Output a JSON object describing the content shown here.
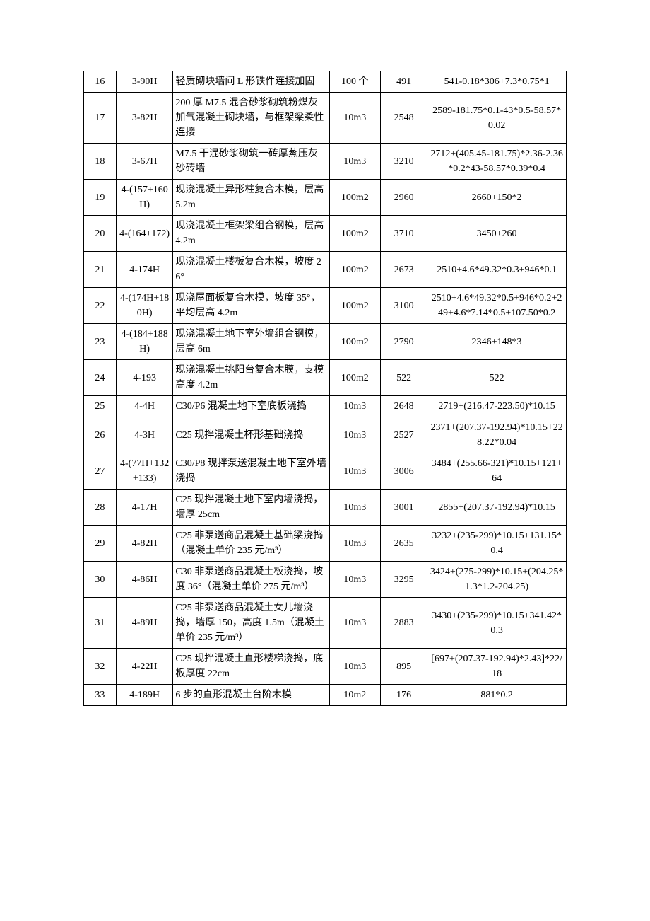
{
  "table": {
    "columns": [
      {
        "key": "idx",
        "class": "col-idx"
      },
      {
        "key": "code",
        "class": "col-code"
      },
      {
        "key": "desc",
        "class": "col-desc"
      },
      {
        "key": "unit",
        "class": "col-unit"
      },
      {
        "key": "val",
        "class": "col-val"
      },
      {
        "key": "calc",
        "class": "col-calc"
      }
    ],
    "rows": [
      {
        "idx": "16",
        "code": "3-90H",
        "desc": "轻质砌块墙间 L 形铁件连接加固",
        "unit": "100 个",
        "val": "491",
        "calc": "541-0.18*306+7.3*0.75*1"
      },
      {
        "idx": "17",
        "code": "3-82H",
        "desc": "200 厚 M7.5 混合砂浆砌筑粉煤灰加气混凝土砌块墙，与框架梁柔性连接",
        "unit": "10m3",
        "val": "2548",
        "calc": "2589-181.75*0.1-43*0.5-58.57*0.02"
      },
      {
        "idx": "18",
        "code": "3-67H",
        "desc": "M7.5 干混砂浆砌筑一砖厚蒸压灰砂砖墙",
        "unit": "10m3",
        "val": "3210",
        "calc": "2712+(405.45-181.75)*2.36-2.36*0.2*43-58.57*0.39*0.4"
      },
      {
        "idx": "19",
        "code": "4-(157+160H)",
        "desc": "现浇混凝土异形柱复合木模，层高 5.2m",
        "unit": "100m2",
        "val": "2960",
        "calc": "2660+150*2"
      },
      {
        "idx": "20",
        "code": "4-(164+172)",
        "desc": "现浇混凝土框架梁组合钢模，层高 4.2m",
        "unit": "100m2",
        "val": "3710",
        "calc": "3450+260"
      },
      {
        "idx": "21",
        "code": "4-174H",
        "desc": "现浇混凝土楼板复合木模，坡度 26°",
        "unit": "100m2",
        "val": "2673",
        "calc": "2510+4.6*49.32*0.3+946*0.1"
      },
      {
        "idx": "22",
        "code": "4-(174H+180H)",
        "desc": "现浇屋面板复合木模，坡度 35°，平均层高 4.2m",
        "unit": "100m2",
        "val": "3100",
        "calc": "2510+4.6*49.32*0.5+946*0.2+249+4.6*7.14*0.5+107.50*0.2"
      },
      {
        "idx": "23",
        "code": "4-(184+188H)",
        "desc": "现浇混凝土地下室外墙组合钢模，层高 6m",
        "unit": "100m2",
        "val": "2790",
        "calc": "2346+148*3"
      },
      {
        "idx": "24",
        "code": "4-193",
        "desc": "现浇混凝土挑阳台复合木膜，支模高度 4.2m",
        "unit": "100m2",
        "val": "522",
        "calc": "522"
      },
      {
        "idx": "25",
        "code": "4-4H",
        "desc": "C30/P6 混凝土地下室底板浇捣",
        "unit": "10m3",
        "val": "2648",
        "calc": "2719+(216.47-223.50)*10.15"
      },
      {
        "idx": "26",
        "code": "4-3H",
        "desc": "C25 现拌混凝土杯形基础浇捣",
        "unit": "10m3",
        "val": "2527",
        "calc": "2371+(207.37-192.94)*10.15+228.22*0.04"
      },
      {
        "idx": "27",
        "code": "4-(77H+132+133)",
        "desc": "C30/P8 现拌泵送混凝土地下室外墙浇捣",
        "unit": "10m3",
        "val": "3006",
        "calc": "3484+(255.66-321)*10.15+121+64"
      },
      {
        "idx": "28",
        "code": "4-17H",
        "desc": "C25 现拌混凝土地下室内墙浇捣，墙厚 25cm",
        "unit": "10m3",
        "val": "3001",
        "calc": "2855+(207.37-192.94)*10.15"
      },
      {
        "idx": "29",
        "code": "4-82H",
        "desc": "C25 非泵送商品混凝土基础梁浇捣（混凝土单价 235 元/m³）",
        "unit": "10m3",
        "val": "2635",
        "calc": "3232+(235-299)*10.15+131.15*0.4"
      },
      {
        "idx": "30",
        "code": "4-86H",
        "desc": "C30 非泵送商品混凝土板浇捣，坡度 36°（混凝土单价 275 元/m³）",
        "unit": "10m3",
        "val": "3295",
        "calc": "3424+(275-299)*10.15+(204.25*1.3*1.2-204.25)"
      },
      {
        "idx": "31",
        "code": "4-89H",
        "desc": "C25 非泵送商品混凝土女儿墙浇捣，墙厚 150，高度 1.5m（混凝土单价 235 元/m³）",
        "unit": "10m3",
        "val": "2883",
        "calc": "3430+(235-299)*10.15+341.42*0.3"
      },
      {
        "idx": "32",
        "code": "4-22H",
        "desc": "C25 现拌混凝土直形楼梯浇捣，底板厚度 22cm",
        "unit": "10m3",
        "val": "895",
        "calc": "[697+(207.37-192.94)*2.43]*22/18"
      },
      {
        "idx": "33",
        "code": "4-189H",
        "desc": "6 步的直形混凝土台阶木模",
        "unit": "10m2",
        "val": "176",
        "calc": "881*0.2"
      }
    ]
  }
}
